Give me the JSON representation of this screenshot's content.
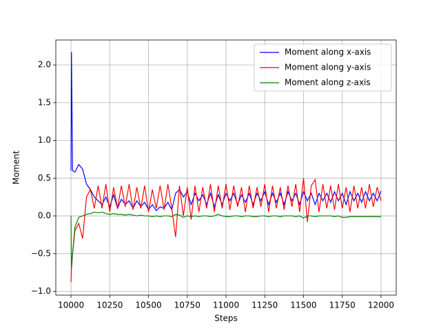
{
  "chart_data": {
    "type": "line",
    "xlabel": "Steps",
    "ylabel": "Moment",
    "x": [
      10000,
      10003,
      10010,
      10025,
      10050,
      10075,
      10100,
      10125,
      10150,
      10175,
      10200,
      10225,
      10250,
      10275,
      10300,
      10325,
      10350,
      10375,
      10400,
      10425,
      10450,
      10475,
      10500,
      10525,
      10550,
      10575,
      10600,
      10625,
      10650,
      10675,
      10700,
      10725,
      10750,
      10775,
      10800,
      10825,
      10850,
      10875,
      10900,
      10925,
      10950,
      10975,
      11000,
      11025,
      11050,
      11075,
      11100,
      11125,
      11150,
      11175,
      11200,
      11225,
      11250,
      11275,
      11300,
      11325,
      11350,
      11375,
      11400,
      11425,
      11450,
      11475,
      11500,
      11525,
      11550,
      11575,
      11600,
      11625,
      11650,
      11675,
      11700,
      11725,
      11750,
      11775,
      11800,
      11825,
      11850,
      11875,
      11900,
      11925,
      11950,
      11975,
      12000
    ],
    "series": [
      {
        "name": "Moment along x-axis",
        "color": "#0000ff",
        "values": [
          0.6,
          2.17,
          0.6,
          0.58,
          0.68,
          0.62,
          0.42,
          0.35,
          0.25,
          0.2,
          0.15,
          0.25,
          0.12,
          0.28,
          0.1,
          0.22,
          0.15,
          0.2,
          0.1,
          0.2,
          0.12,
          0.18,
          0.08,
          0.15,
          0.07,
          0.12,
          0.1,
          0.18,
          0.08,
          0.3,
          0.35,
          0.25,
          0.32,
          0.15,
          0.3,
          0.2,
          0.28,
          0.15,
          0.3,
          0.12,
          0.28,
          0.15,
          0.3,
          0.2,
          0.3,
          0.15,
          0.28,
          0.18,
          0.3,
          0.15,
          0.3,
          0.2,
          0.32,
          0.15,
          0.3,
          0.18,
          0.3,
          0.15,
          0.32,
          0.2,
          0.3,
          0.15,
          0.32,
          0.2,
          0.3,
          0.15,
          0.3,
          0.2,
          0.3,
          0.18,
          0.32,
          0.2,
          0.3,
          0.15,
          0.32,
          0.2,
          0.3,
          0.18,
          0.32,
          0.2,
          0.3,
          0.2,
          0.33
        ]
      },
      {
        "name": "Moment along y-axis",
        "color": "#ff0000",
        "values": [
          -0.88,
          -0.7,
          -0.5,
          -0.2,
          -0.1,
          -0.3,
          0.25,
          0.35,
          0.1,
          0.4,
          0.1,
          0.42,
          0.05,
          0.38,
          0.1,
          0.4,
          0.12,
          0.42,
          0.08,
          0.38,
          0.1,
          0.4,
          0.05,
          0.35,
          0.1,
          0.4,
          0.08,
          0.42,
          0.1,
          -0.28,
          0.4,
          0.0,
          0.38,
          -0.05,
          0.4,
          0.05,
          0.38,
          0.1,
          0.42,
          0.05,
          0.4,
          0.1,
          0.42,
          0.08,
          0.4,
          0.12,
          0.38,
          0.05,
          0.4,
          0.1,
          0.38,
          0.12,
          0.42,
          0.05,
          0.4,
          0.1,
          0.38,
          0.08,
          0.4,
          0.12,
          0.42,
          0.05,
          0.5,
          -0.08,
          0.4,
          0.48,
          0.05,
          0.42,
          0.1,
          0.4,
          0.08,
          0.42,
          0.1,
          0.38,
          0.05,
          0.4,
          0.1,
          0.38,
          0.1,
          0.42,
          0.12,
          0.38,
          0.2
        ]
      },
      {
        "name": "Moment along z-axis",
        "color": "#008000",
        "values": [
          0,
          -0.7,
          -0.5,
          -0.15,
          -0.02,
          0.0,
          0.02,
          0.03,
          0.05,
          0.04,
          0.05,
          0.03,
          0.02,
          0.03,
          0.02,
          0.02,
          0.01,
          0.02,
          0.01,
          0.0,
          0.01,
          0.0,
          0.0,
          -0.01,
          0.0,
          -0.01,
          0.0,
          0.0,
          -0.01,
          0.02,
          0.01,
          -0.02,
          0.0,
          -0.01,
          0.0,
          -0.01,
          0.0,
          0.0,
          -0.01,
          0.0,
          0.02,
          0.0,
          -0.01,
          -0.01,
          0.0,
          0.0,
          -0.01,
          0.0,
          0.0,
          -0.01,
          -0.01,
          0.0,
          0.0,
          -0.01,
          0.0,
          0.0,
          -0.01,
          0.0,
          0.0,
          0.0,
          -0.01,
          0.0,
          -0.03,
          0.0,
          0.0,
          -0.01,
          0.0,
          0.0,
          0.0,
          0.0,
          -0.01,
          0.0,
          -0.02,
          -0.02,
          -0.01,
          -0.01,
          -0.01,
          -0.01,
          -0.01,
          -0.01,
          -0.01,
          -0.01,
          -0.01
        ]
      }
    ],
    "xlim": [
      9902,
      12098
    ],
    "ylim": [
      -1.05,
      2.33
    ],
    "xticks": [
      10000,
      10250,
      10500,
      10750,
      11000,
      11250,
      11500,
      11750,
      12000
    ],
    "yticks": [
      {
        "value": -1.0,
        "label": "−1.0"
      },
      {
        "value": -0.5,
        "label": "−0.5"
      },
      {
        "value": 0.0,
        "label": "0.0"
      },
      {
        "value": 0.5,
        "label": "0.5"
      },
      {
        "value": 1.0,
        "label": "1.0"
      },
      {
        "value": 1.5,
        "label": "1.5"
      },
      {
        "value": 2.0,
        "label": "2.0"
      }
    ],
    "grid": true,
    "legend": "upper-right"
  }
}
